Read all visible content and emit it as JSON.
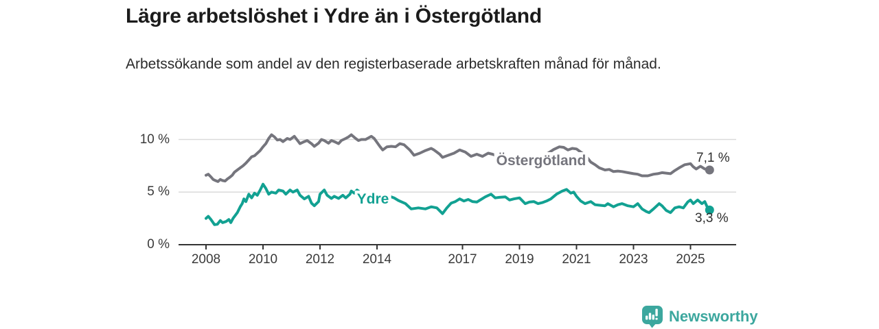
{
  "header": {
    "title": "Lägre arbetslöshet i Ydre än i Östergötland",
    "subtitle": "Arbetssökande som andel av den registerbaserade arbetskraften månad för månad."
  },
  "branding": {
    "logo_text": "Newsworthy",
    "logo_color": "#3ca79e",
    "logo_icon": "newsworthy-bars-icon"
  },
  "colors": {
    "ostergotland_line": "#75757d",
    "ydre_line": "#12a192",
    "gridline": "#dadada",
    "axis": "#333333",
    "axis_text": "#3a3a3a",
    "value_label_text": "#2e2e2e"
  },
  "chart_data": {
    "type": "line",
    "title": "Lägre arbetslöshet i Ydre än i Östergötland",
    "subtitle": "Arbetssökande som andel av den registerbaserade arbetskraften månad för månad.",
    "ylabel": "",
    "xlabel": "",
    "ylim": [
      0,
      11.5
    ],
    "xlim": [
      2008,
      2025.75
    ],
    "grid": "horizontal",
    "legend_position": "inline-labels",
    "y_axis": {
      "ticks": [
        {
          "value": 0,
          "label": "0 %"
        },
        {
          "value": 5,
          "label": "5 %"
        },
        {
          "value": 10,
          "label": "10 %"
        }
      ]
    },
    "x_axis": {
      "ticks": [
        {
          "year": 2008,
          "label": "2008"
        },
        {
          "year": 2010,
          "label": "2010"
        },
        {
          "year": 2012,
          "label": "2012"
        },
        {
          "year": 2014,
          "label": "2014"
        },
        {
          "year": 2017,
          "label": "2017"
        },
        {
          "year": 2019,
          "label": "2019"
        },
        {
          "year": 2021,
          "label": "2021"
        },
        {
          "year": 2023,
          "label": "2023"
        },
        {
          "year": 2025,
          "label": "2025"
        }
      ]
    },
    "series": [
      {
        "name": "Östergötland",
        "slug": "ostergotland",
        "color": "#75757d",
        "end_label": "7,1 %",
        "end_value": 7.1,
        "points": [
          [
            2008.0,
            6.6
          ],
          [
            2008.08,
            6.7
          ],
          [
            2008.17,
            6.45
          ],
          [
            2008.25,
            6.2
          ],
          [
            2008.33,
            6.1
          ],
          [
            2008.42,
            6.0
          ],
          [
            2008.5,
            6.2
          ],
          [
            2008.58,
            6.1
          ],
          [
            2008.67,
            6.05
          ],
          [
            2008.75,
            6.25
          ],
          [
            2008.83,
            6.4
          ],
          [
            2008.92,
            6.6
          ],
          [
            2009.0,
            6.9
          ],
          [
            2009.1,
            7.1
          ],
          [
            2009.2,
            7.3
          ],
          [
            2009.3,
            7.5
          ],
          [
            2009.4,
            7.75
          ],
          [
            2009.5,
            8.05
          ],
          [
            2009.6,
            8.35
          ],
          [
            2009.7,
            8.45
          ],
          [
            2009.8,
            8.7
          ],
          [
            2009.9,
            8.95
          ],
          [
            2010.0,
            9.3
          ],
          [
            2010.1,
            9.6
          ],
          [
            2010.2,
            10.1
          ],
          [
            2010.3,
            10.45
          ],
          [
            2010.4,
            10.25
          ],
          [
            2010.5,
            9.95
          ],
          [
            2010.6,
            10.0
          ],
          [
            2010.7,
            9.8
          ],
          [
            2010.85,
            10.1
          ],
          [
            2010.95,
            10.0
          ],
          [
            2011.1,
            10.3
          ],
          [
            2011.2,
            9.95
          ],
          [
            2011.3,
            9.6
          ],
          [
            2011.45,
            9.8
          ],
          [
            2011.55,
            9.9
          ],
          [
            2011.7,
            9.6
          ],
          [
            2011.8,
            9.35
          ],
          [
            2011.95,
            9.65
          ],
          [
            2012.05,
            10.0
          ],
          [
            2012.15,
            9.9
          ],
          [
            2012.3,
            9.65
          ],
          [
            2012.4,
            9.9
          ],
          [
            2012.5,
            9.8
          ],
          [
            2012.65,
            9.6
          ],
          [
            2012.75,
            9.9
          ],
          [
            2012.9,
            10.1
          ],
          [
            2013.0,
            10.25
          ],
          [
            2013.1,
            10.45
          ],
          [
            2013.25,
            10.1
          ],
          [
            2013.35,
            9.9
          ],
          [
            2013.45,
            10.0
          ],
          [
            2013.6,
            10.0
          ],
          [
            2013.8,
            10.3
          ],
          [
            2013.9,
            10.1
          ],
          [
            2014.1,
            9.35
          ],
          [
            2014.2,
            9.0
          ],
          [
            2014.35,
            9.3
          ],
          [
            2014.5,
            9.35
          ],
          [
            2014.65,
            9.3
          ],
          [
            2014.8,
            9.6
          ],
          [
            2014.95,
            9.5
          ],
          [
            2015.15,
            9.0
          ],
          [
            2015.3,
            8.5
          ],
          [
            2015.5,
            8.7
          ],
          [
            2015.7,
            8.95
          ],
          [
            2015.9,
            9.15
          ],
          [
            2016.0,
            9.0
          ],
          [
            2016.2,
            8.6
          ],
          [
            2016.3,
            8.3
          ],
          [
            2016.5,
            8.5
          ],
          [
            2016.7,
            8.7
          ],
          [
            2016.9,
            9.0
          ],
          [
            2017.1,
            8.8
          ],
          [
            2017.3,
            8.4
          ],
          [
            2017.5,
            8.6
          ],
          [
            2017.7,
            8.4
          ],
          [
            2017.9,
            8.7
          ],
          [
            2018.05,
            8.6
          ],
          [
            2018.2,
            8.45
          ],
          [
            2018.4,
            8.55
          ],
          [
            2018.6,
            8.4
          ],
          [
            2018.8,
            8.5
          ],
          [
            2019.0,
            8.35
          ],
          [
            2019.2,
            8.3
          ],
          [
            2019.4,
            8.45
          ],
          [
            2019.6,
            8.35
          ],
          [
            2019.8,
            8.5
          ],
          [
            2020.0,
            8.7
          ],
          [
            2020.2,
            9.05
          ],
          [
            2020.4,
            9.3
          ],
          [
            2020.55,
            9.25
          ],
          [
            2020.7,
            9.0
          ],
          [
            2020.85,
            9.15
          ],
          [
            2021.0,
            9.1
          ],
          [
            2021.15,
            8.8
          ],
          [
            2021.3,
            8.55
          ],
          [
            2021.5,
            7.85
          ],
          [
            2021.65,
            7.6
          ],
          [
            2021.8,
            7.3
          ],
          [
            2022.0,
            7.1
          ],
          [
            2022.15,
            7.15
          ],
          [
            2022.3,
            6.95
          ],
          [
            2022.45,
            7.0
          ],
          [
            2022.6,
            6.95
          ],
          [
            2022.8,
            6.85
          ],
          [
            2023.0,
            6.75
          ],
          [
            2023.15,
            6.7
          ],
          [
            2023.3,
            6.55
          ],
          [
            2023.5,
            6.55
          ],
          [
            2023.7,
            6.7
          ],
          [
            2023.85,
            6.75
          ],
          [
            2024.0,
            6.85
          ],
          [
            2024.15,
            6.8
          ],
          [
            2024.3,
            6.75
          ],
          [
            2024.45,
            7.05
          ],
          [
            2024.6,
            7.3
          ],
          [
            2024.8,
            7.6
          ],
          [
            2025.0,
            7.7
          ],
          [
            2025.1,
            7.4
          ],
          [
            2025.2,
            7.2
          ],
          [
            2025.35,
            7.45
          ],
          [
            2025.5,
            7.2
          ],
          [
            2025.67,
            7.1
          ]
        ]
      },
      {
        "name": "Ydre",
        "slug": "ydre",
        "color": "#12a192",
        "end_label": "3,3 %",
        "end_value": 3.3,
        "points": [
          [
            2008.0,
            2.5
          ],
          [
            2008.08,
            2.7
          ],
          [
            2008.17,
            2.4
          ],
          [
            2008.3,
            1.9
          ],
          [
            2008.4,
            1.95
          ],
          [
            2008.5,
            2.3
          ],
          [
            2008.58,
            2.1
          ],
          [
            2008.7,
            2.2
          ],
          [
            2008.8,
            2.4
          ],
          [
            2008.87,
            2.1
          ],
          [
            2008.95,
            2.5
          ],
          [
            2009.1,
            3.05
          ],
          [
            2009.2,
            3.6
          ],
          [
            2009.27,
            3.9
          ],
          [
            2009.33,
            4.35
          ],
          [
            2009.4,
            4.1
          ],
          [
            2009.5,
            4.8
          ],
          [
            2009.6,
            4.45
          ],
          [
            2009.7,
            4.9
          ],
          [
            2009.8,
            4.7
          ],
          [
            2009.9,
            5.2
          ],
          [
            2010.0,
            5.75
          ],
          [
            2010.1,
            5.35
          ],
          [
            2010.2,
            4.8
          ],
          [
            2010.3,
            5.0
          ],
          [
            2010.45,
            4.9
          ],
          [
            2010.55,
            5.2
          ],
          [
            2010.7,
            5.1
          ],
          [
            2010.8,
            4.8
          ],
          [
            2010.95,
            5.2
          ],
          [
            2011.05,
            5.0
          ],
          [
            2011.2,
            5.2
          ],
          [
            2011.3,
            4.7
          ],
          [
            2011.45,
            4.35
          ],
          [
            2011.6,
            4.6
          ],
          [
            2011.7,
            3.95
          ],
          [
            2011.8,
            3.7
          ],
          [
            2011.95,
            4.1
          ],
          [
            2012.0,
            4.8
          ],
          [
            2012.15,
            5.2
          ],
          [
            2012.25,
            4.7
          ],
          [
            2012.4,
            4.4
          ],
          [
            2012.5,
            4.6
          ],
          [
            2012.65,
            4.4
          ],
          [
            2012.8,
            4.7
          ],
          [
            2012.9,
            4.45
          ],
          [
            2013.05,
            4.8
          ],
          [
            2013.1,
            5.1
          ],
          [
            2013.2,
            4.9
          ],
          [
            2013.3,
            5.2
          ],
          [
            2013.45,
            4.9
          ],
          [
            2013.6,
            4.8
          ],
          [
            2013.75,
            4.95
          ],
          [
            2013.9,
            4.85
          ],
          [
            2014.05,
            4.9
          ],
          [
            2014.2,
            4.75
          ],
          [
            2014.35,
            4.65
          ],
          [
            2014.5,
            4.55
          ],
          [
            2014.6,
            4.45
          ],
          [
            2014.75,
            4.2
          ],
          [
            2015.0,
            3.9
          ],
          [
            2015.2,
            3.4
          ],
          [
            2015.45,
            3.5
          ],
          [
            2015.7,
            3.4
          ],
          [
            2015.9,
            3.6
          ],
          [
            2016.1,
            3.5
          ],
          [
            2016.3,
            2.95
          ],
          [
            2016.45,
            3.5
          ],
          [
            2016.6,
            3.95
          ],
          [
            2016.75,
            4.1
          ],
          [
            2016.9,
            4.35
          ],
          [
            2017.05,
            4.15
          ],
          [
            2017.2,
            4.3
          ],
          [
            2017.35,
            4.1
          ],
          [
            2017.5,
            4.05
          ],
          [
            2017.65,
            4.3
          ],
          [
            2017.8,
            4.55
          ],
          [
            2018.0,
            4.8
          ],
          [
            2018.15,
            4.45
          ],
          [
            2018.3,
            4.5
          ],
          [
            2018.5,
            4.55
          ],
          [
            2018.65,
            4.25
          ],
          [
            2018.8,
            4.35
          ],
          [
            2019.0,
            4.45
          ],
          [
            2019.2,
            3.9
          ],
          [
            2019.35,
            4.05
          ],
          [
            2019.5,
            4.1
          ],
          [
            2019.65,
            3.9
          ],
          [
            2019.8,
            4.0
          ],
          [
            2019.95,
            4.15
          ],
          [
            2020.1,
            4.35
          ],
          [
            2020.3,
            4.8
          ],
          [
            2020.5,
            5.1
          ],
          [
            2020.65,
            5.25
          ],
          [
            2020.8,
            4.9
          ],
          [
            2020.9,
            5.0
          ],
          [
            2021.0,
            4.6
          ],
          [
            2021.15,
            4.15
          ],
          [
            2021.3,
            3.9
          ],
          [
            2021.5,
            4.1
          ],
          [
            2021.65,
            3.8
          ],
          [
            2021.8,
            3.75
          ],
          [
            2022.0,
            3.7
          ],
          [
            2022.1,
            3.9
          ],
          [
            2022.3,
            3.6
          ],
          [
            2022.45,
            3.8
          ],
          [
            2022.6,
            3.9
          ],
          [
            2022.8,
            3.7
          ],
          [
            2023.0,
            3.6
          ],
          [
            2023.15,
            3.9
          ],
          [
            2023.3,
            3.4
          ],
          [
            2023.45,
            3.15
          ],
          [
            2023.55,
            3.05
          ],
          [
            2023.7,
            3.4
          ],
          [
            2023.9,
            3.9
          ],
          [
            2024.0,
            3.7
          ],
          [
            2024.15,
            3.25
          ],
          [
            2024.3,
            3.05
          ],
          [
            2024.45,
            3.5
          ],
          [
            2024.6,
            3.6
          ],
          [
            2024.75,
            3.5
          ],
          [
            2024.9,
            4.05
          ],
          [
            2025.0,
            4.25
          ],
          [
            2025.1,
            3.9
          ],
          [
            2025.25,
            4.25
          ],
          [
            2025.4,
            3.9
          ],
          [
            2025.5,
            4.1
          ],
          [
            2025.6,
            3.5
          ],
          [
            2025.67,
            3.3
          ]
        ]
      }
    ]
  }
}
